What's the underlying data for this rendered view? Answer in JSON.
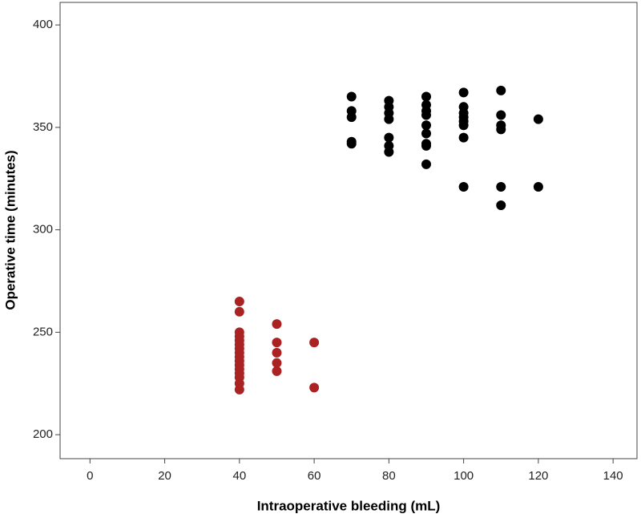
{
  "chart_data": {
    "type": "scatter",
    "xlabel": "Intraoperative bleeding (mL)",
    "ylabel": "Operative time (minutes)",
    "xlim": [
      -8,
      146.4
    ],
    "ylim": [
      188.3,
      411
    ],
    "xticks": [
      0,
      20,
      40,
      60,
      80,
      100,
      120,
      140
    ],
    "yticks": [
      200,
      250,
      300,
      350,
      400
    ],
    "series": [
      {
        "color": "#000000",
        "x": [
          70,
          70,
          70,
          70,
          70,
          80,
          80,
          80,
          80,
          80,
          80,
          80,
          90,
          90,
          90,
          90,
          90,
          90,
          90,
          90,
          90,
          100,
          100,
          100,
          100,
          100,
          100,
          100,
          100,
          110,
          110,
          110,
          110,
          110,
          110,
          120,
          120
        ],
        "y": [
          365,
          358,
          355,
          343,
          342,
          363,
          360,
          357,
          354,
          345,
          341,
          338,
          365,
          361,
          358,
          356,
          351,
          347,
          342,
          341,
          332,
          367,
          360,
          357,
          355,
          353,
          351,
          345,
          321,
          368,
          356,
          351,
          349,
          321,
          312,
          354,
          321
        ]
      },
      {
        "color": "#aa2222",
        "x": [
          40,
          40,
          40,
          40,
          40,
          40,
          40,
          40,
          40,
          40,
          40,
          40,
          40,
          40,
          40,
          40,
          50,
          50,
          50,
          50,
          50,
          60,
          60
        ],
        "y": [
          265,
          260,
          250,
          248,
          246,
          244,
          242,
          240,
          238,
          236,
          234,
          232,
          230,
          228,
          225,
          222,
          254,
          245,
          240,
          235,
          231,
          245,
          223
        ]
      }
    ]
  }
}
